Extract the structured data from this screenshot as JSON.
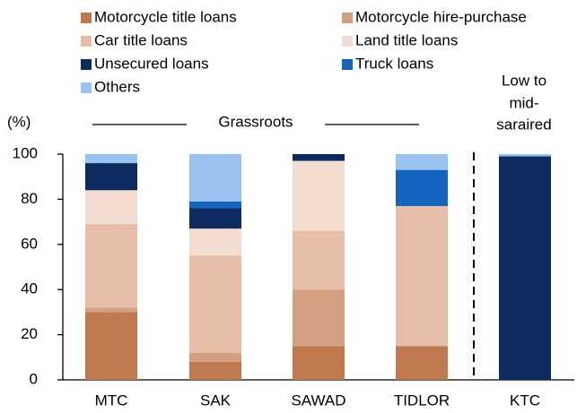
{
  "chart_data": {
    "type": "stacked_bar",
    "y_label": "(%)",
    "group_label": "Grassroots",
    "right_group_label": [
      "Low to",
      "mid-",
      "saraired"
    ],
    "categories": [
      "MTC",
      "SAK",
      "SAWAD",
      "TIDLOR",
      "KTC"
    ],
    "series": [
      {
        "name": "Motorcycle title loans",
        "color": "#c0784f",
        "values": [
          30,
          8,
          15,
          15,
          0
        ]
      },
      {
        "name": "Motorcycle hire-purchase",
        "color": "#d49e80",
        "values": [
          2,
          4,
          25,
          0,
          0
        ]
      },
      {
        "name": "Car title loans",
        "color": "#e6bea7",
        "values": [
          37,
          43,
          26,
          62,
          0
        ]
      },
      {
        "name": "Land title loans",
        "color": "#f2ddd0",
        "values": [
          15,
          12,
          31,
          0,
          0
        ]
      },
      {
        "name": "Unsecured loans",
        "color": "#0d2b5e",
        "values": [
          12,
          9,
          3,
          0,
          99
        ]
      },
      {
        "name": "Truck loans",
        "color": "#1464c0",
        "values": [
          0,
          3,
          0,
          16,
          0
        ]
      },
      {
        "name": "Others",
        "color": "#99c2ee",
        "values": [
          4,
          21,
          0,
          7,
          1
        ]
      }
    ],
    "ylim": [
      0,
      100
    ],
    "yticks": [
      0,
      20,
      40,
      60,
      80,
      100
    ],
    "grid": false
  }
}
